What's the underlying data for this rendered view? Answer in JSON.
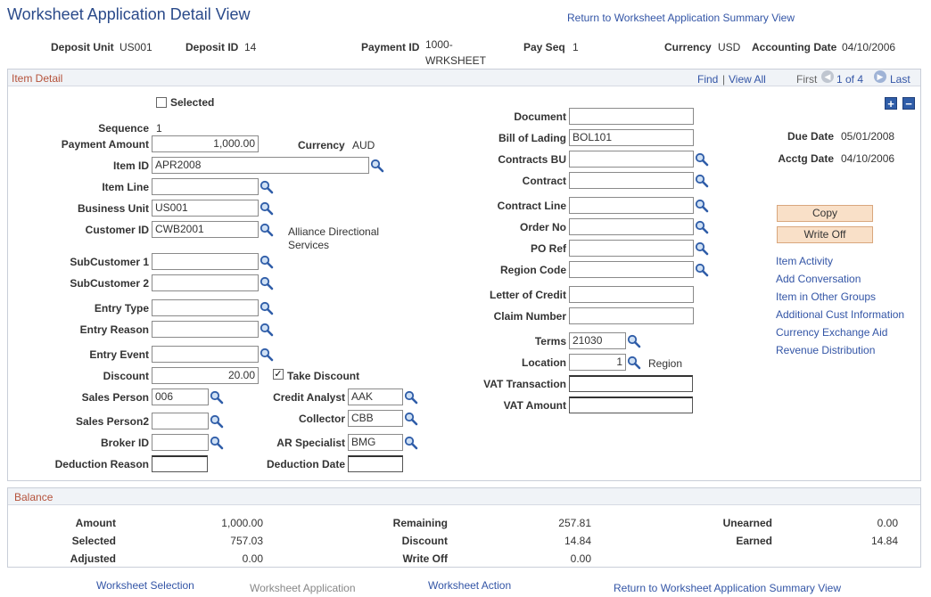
{
  "page": {
    "title": "Worksheet Application Detail View",
    "return_link": "Return to Worksheet Application Summary View"
  },
  "header": {
    "deposit_unit_label": "Deposit Unit",
    "deposit_unit": "US001",
    "deposit_id_label": "Deposit ID",
    "deposit_id": "14",
    "payment_id_label": "Payment ID",
    "payment_id_line1": "1000-",
    "payment_id_line2": "WRKSHEET",
    "pay_seq_label": "Pay Seq",
    "pay_seq": "1",
    "currency_label": "Currency",
    "currency": "USD",
    "accounting_date_label": "Accounting Date",
    "accounting_date": "04/10/2006"
  },
  "item_detail": {
    "section_title": "Item Detail",
    "find": "Find",
    "sep": "|",
    "view_all": "View All",
    "first": "First",
    "page_of": "1 of 4",
    "last": "Last",
    "add_symbol": "+",
    "remove_symbol": "−",
    "selected_label": "Selected",
    "selected_checked": false,
    "sequence_label": "Sequence",
    "sequence": "1",
    "payment_amount_label": "Payment Amount",
    "payment_amount": "1,000.00",
    "currency_label": "Currency",
    "currency": "AUD",
    "item_id_label": "Item ID",
    "item_id": "APR2008",
    "item_line_label": "Item Line",
    "item_line": "",
    "business_unit_label": "Business Unit",
    "business_unit": "US001",
    "customer_id_label": "Customer ID",
    "customer_id": "CWB2001",
    "customer_name_line1": "Alliance Directional",
    "customer_name_line2": "Services",
    "subcustomer1_label": "SubCustomer 1",
    "subcustomer1": "",
    "subcustomer2_label": "SubCustomer 2",
    "subcustomer2": "",
    "entry_type_label": "Entry Type",
    "entry_type": "",
    "entry_reason_label": "Entry Reason",
    "entry_reason": "",
    "entry_event_label": "Entry Event",
    "entry_event": "",
    "discount_label": "Discount",
    "discount": "20.00",
    "take_discount_label": "Take Discount",
    "take_discount_checked": true,
    "check_mark": "✓",
    "sales_person_label": "Sales Person",
    "sales_person": "006",
    "credit_analyst_label": "Credit Analyst",
    "credit_analyst": "AAK",
    "sales_person2_label": "Sales Person2",
    "sales_person2": "",
    "collector_label": "Collector",
    "collector": "CBB",
    "broker_id_label": "Broker ID",
    "broker_id": "",
    "ar_specialist_label": "AR Specialist",
    "ar_specialist": "BMG",
    "deduction_reason_label": "Deduction Reason",
    "deduction_reason": "",
    "deduction_date_label": "Deduction Date",
    "deduction_date": "",
    "document_label": "Document",
    "document": "",
    "bill_of_lading_label": "Bill of Lading",
    "bill_of_lading": "BOL101",
    "contracts_bu_label": "Contracts BU",
    "contracts_bu": "",
    "contract_label": "Contract",
    "contract": "",
    "contract_line_label": "Contract Line",
    "contract_line": "",
    "order_no_label": "Order No",
    "order_no": "",
    "po_ref_label": "PO Ref",
    "po_ref": "",
    "region_code_label": "Region Code",
    "region_code": "",
    "letter_of_credit_label": "Letter of Credit",
    "letter_of_credit": "",
    "claim_number_label": "Claim Number",
    "claim_number": "",
    "terms_label": "Terms",
    "terms": "21030",
    "location_label": "Location",
    "location": "1",
    "region_label": "Region",
    "vat_transaction_label": "VAT Transaction",
    "vat_transaction": "",
    "vat_amount_label": "VAT Amount",
    "vat_amount": "",
    "due_date_label": "Due Date",
    "due_date": "05/01/2008",
    "acctg_date_label": "Acctg Date",
    "acctg_date": "04/10/2006",
    "copy_button": "Copy",
    "write_off_button": "Write Off",
    "links": [
      "Item Activity",
      "Add Conversation",
      "Item in Other Groups",
      "Additional Cust Information",
      "Currency Exchange Aid",
      "Revenue Distribution"
    ]
  },
  "balance": {
    "section_title": "Balance",
    "amount_label": "Amount",
    "amount": "1,000.00",
    "selected_label": "Selected",
    "selected": "757.03",
    "adjusted_label": "Adjusted",
    "adjusted": "0.00",
    "remaining_label": "Remaining",
    "remaining": "257.81",
    "discount_label": "Discount",
    "discount": "14.84",
    "write_off_label": "Write Off",
    "write_off": "0.00",
    "unearned_label": "Unearned",
    "unearned": "0.00",
    "earned_label": "Earned",
    "earned": "14.84"
  },
  "footer": {
    "worksheet_selection": "Worksheet Selection",
    "worksheet_application": "Worksheet Application",
    "worksheet_action": "Worksheet Action",
    "return_link": "Return to Worksheet Application Summary View"
  },
  "colors": {
    "title": "#2a4a8a",
    "link": "#3355a6",
    "section_title": "#b5523b",
    "button_bg": "#f9e0c8"
  }
}
